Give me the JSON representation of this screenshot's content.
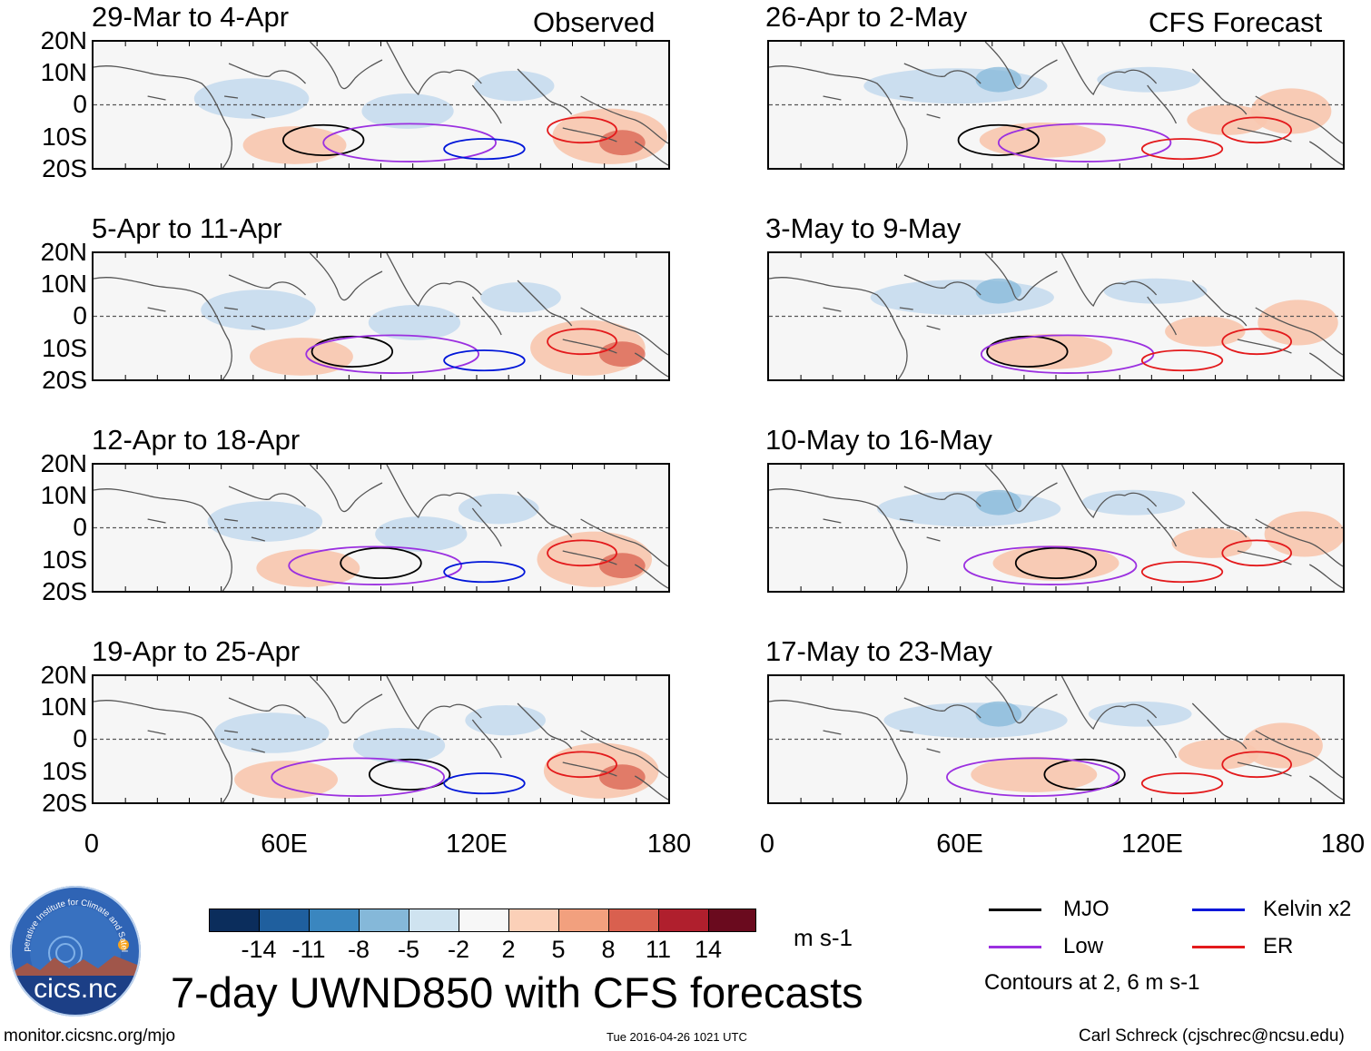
{
  "figure_title": "7-day UWND850 with CFS forecasts",
  "observed_label": "Observed",
  "forecast_label": "CFS Forecast",
  "panels": [
    {
      "title": "29-Mar to 4-Apr",
      "column": "observed"
    },
    {
      "title": "5-Apr to 11-Apr",
      "column": "observed"
    },
    {
      "title": "12-Apr to 18-Apr",
      "column": "observed"
    },
    {
      "title": "19-Apr to 25-Apr",
      "column": "observed"
    },
    {
      "title": "26-Apr to 2-May",
      "column": "forecast"
    },
    {
      "title": "3-May to 9-May",
      "column": "forecast"
    },
    {
      "title": "10-May to 16-May",
      "column": "forecast"
    },
    {
      "title": "17-May to 23-May",
      "column": "forecast"
    }
  ],
  "lat_labels": [
    "20N",
    "10N",
    "0",
    "10S",
    "20S"
  ],
  "lon_labels": [
    "0",
    "60E",
    "120E",
    "180"
  ],
  "colorbar": {
    "labels": [
      "-14",
      "-11",
      "-8",
      "-5",
      "-2",
      "2",
      "5",
      "8",
      "11",
      "14"
    ],
    "colors": [
      "#0b2d5c",
      "#1f5f9e",
      "#3a86bf",
      "#85b8d9",
      "#cfe3f0",
      "#f7f7f7",
      "#fbd0b8",
      "#f2a07e",
      "#d9604f",
      "#b01f2d",
      "#6a0a1e"
    ],
    "units": "m s-1"
  },
  "legend": {
    "items": [
      {
        "label": "MJO",
        "color": "#000000"
      },
      {
        "label": "Kelvin x2",
        "color": "#0016d9"
      },
      {
        "label": "Low",
        "color": "#9b30e0"
      },
      {
        "label": "ER",
        "color": "#e31a1c"
      }
    ],
    "note": "Contours at 2, 6 m s-1"
  },
  "logo": {
    "arc_text": "Cooperative Institute for Climate and Satellites",
    "name": "cics.nc"
  },
  "footer": {
    "left": "monitor.cicsnc.org/mjo",
    "center": "Tue 2016-04-26 1021 UTC",
    "right": "Carl Schreck (cjschrec@ncsu.edu)"
  },
  "colors": {
    "blue_fill": "#c7dcee",
    "red_fill": "#f8c6ae",
    "coast": "#555555"
  }
}
